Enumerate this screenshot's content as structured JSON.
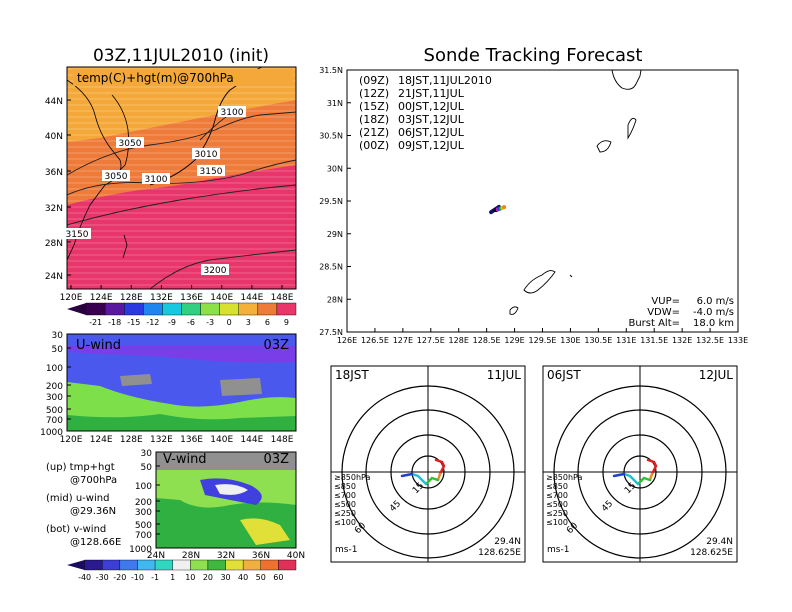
{
  "figure": {
    "left_title": "03Z,11JUL2010 (init)",
    "right_title": "Sonde Tracking Forecast"
  },
  "colors": {
    "map_warm": "#ee8a3a",
    "map_orange": "#f3a33e",
    "map_hot": "#e8356a",
    "wind_blue": "#4a58ee",
    "wind_purple": "#7a3ee8",
    "wind_green": "#7de04a",
    "wind_gray": "#909090",
    "track_red": "#dd2020",
    "track_orange": "#f08a20",
    "track_green": "#30c030",
    "track_cyan": "#20c0d0",
    "track_blue": "#2040d0",
    "track_navy": "#101060"
  },
  "upper_map": {
    "label": "temp(C)+hgt(m)@700hPa",
    "lat_ticks": [
      "44N",
      "40N",
      "36N",
      "32N",
      "28N",
      "24N"
    ],
    "lon_ticks": [
      "120E",
      "124E",
      "128E",
      "132E",
      "136E",
      "140E",
      "144E",
      "148E"
    ],
    "contour_labels": [
      "3100",
      "3050",
      "3010",
      "3050",
      "3100",
      "3150",
      "3150",
      "3200"
    ],
    "colorbar_labels": [
      "-21",
      "-18",
      "-15",
      "-12",
      "-9",
      "-6",
      "-3",
      "0",
      "3",
      "6",
      "9"
    ],
    "colorbar_colors": [
      "#3a0050",
      "#5a18a0",
      "#2a3ae0",
      "#1f86f0",
      "#18c8e0",
      "#30d080",
      "#8ce048",
      "#d8e030",
      "#f5b03a",
      "#ee7b3a",
      "#e8356a"
    ]
  },
  "u_wind": {
    "label": "U-wind",
    "time": "03Z",
    "y_ticks": [
      "30",
      "50",
      "100",
      "200",
      "300",
      "500",
      "700",
      "1000"
    ],
    "x_ticks": [
      "120E",
      "124E",
      "128E",
      "132E",
      "136E",
      "140E",
      "144E",
      "148E"
    ]
  },
  "v_wind": {
    "label": "V-wind",
    "time": "03Z",
    "y_ticks": [
      "30",
      "50",
      "100",
      "200",
      "300",
      "500",
      "700",
      "1000"
    ],
    "x_ticks": [
      "24N",
      "28N",
      "32N",
      "36N",
      "40N"
    ],
    "colorbar_labels": [
      "-40",
      "-30",
      "-20",
      "-10",
      "-1",
      "1",
      "10",
      "20",
      "30",
      "40",
      "50",
      "60"
    ],
    "colorbar_colors": [
      "#2a1a90",
      "#3d3dd8",
      "#3f79ee",
      "#40b8f0",
      "#30d8c0",
      "#f0f0f0",
      "#8ee050",
      "#40b840",
      "#e0e038",
      "#f0b040",
      "#f07030",
      "#e03058"
    ]
  },
  "legend_notes": [
    {
      "title": "(up) tmp+hgt",
      "detail": "@700hPa"
    },
    {
      "title": "(mid) u-wind",
      "detail": "@29.36N"
    },
    {
      "title": "(bot) v-wind",
      "detail": "@128.66E"
    }
  ],
  "track_map": {
    "lat_ticks": [
      "31.5N",
      "31N",
      "30.5N",
      "30N",
      "29.5N",
      "29N",
      "28.5N",
      "28N",
      "27.5N"
    ],
    "lon_ticks": [
      "126E",
      "126.5E",
      "127E",
      "127.5E",
      "128E",
      "128.5E",
      "129E",
      "129.5E",
      "130E",
      "130.5E",
      "131E",
      "131.5E",
      "132E",
      "132.5E",
      "133E"
    ],
    "forecasts": [
      {
        "run": "(09Z)",
        "valid": "18JST,11JUL2010",
        "color": "#000000"
      },
      {
        "run": "(12Z)",
        "valid": "21JST,11JUL",
        "color": "#c020c0"
      },
      {
        "run": "(15Z)",
        "valid": "00JST,12JUL",
        "color": "#2040e0"
      },
      {
        "run": "(18Z)",
        "valid": "03JST,12JUL",
        "color": "#20b020"
      },
      {
        "run": "(21Z)",
        "valid": "06JST,12JUL",
        "color": "#e8c820"
      },
      {
        "run": "(00Z)",
        "valid": "09JST,12JUL",
        "color": "#f08020"
      }
    ],
    "params": [
      {
        "label": "VUP=",
        "value": "6.0 m/s"
      },
      {
        "label": "VDW=",
        "value": "-4.0 m/s"
      },
      {
        "label": "Burst Alt=",
        "value": "18.0 km"
      }
    ]
  },
  "hodographs": [
    {
      "time": "18JST",
      "date": "11JUL",
      "lat": "29.4N",
      "lon": "128.625E",
      "unit": "ms-1",
      "ring_labels": [
        "15",
        "45",
        "60"
      ],
      "levels": [
        {
          "label": "≥850hPa",
          "color": "#dd2020"
        },
        {
          "label": "≤850",
          "color": "#f08a20"
        },
        {
          "label": "≤700",
          "color": "#d8c820"
        },
        {
          "label": "≤500",
          "color": "#30c030"
        },
        {
          "label": "≤250",
          "color": "#20c0d0"
        },
        {
          "label": "≤100",
          "color": "#2040d0"
        }
      ]
    },
    {
      "time": "06JST",
      "date": "12JUL",
      "lat": "29.4N",
      "lon": "128.625E",
      "unit": "ms-1",
      "ring_labels": [
        "15",
        "45",
        "60"
      ],
      "levels": [
        {
          "label": "≥850hPa",
          "color": "#dd2020"
        },
        {
          "label": "≤850",
          "color": "#f08a20"
        },
        {
          "label": "≤700",
          "color": "#d8c820"
        },
        {
          "label": "≤500",
          "color": "#30c030"
        },
        {
          "label": "≤250",
          "color": "#20c0d0"
        },
        {
          "label": "≤100",
          "color": "#2040d0"
        }
      ]
    }
  ],
  "chart_data": [
    {
      "type": "heatmap",
      "title": "temp(C)+hgt(m)@700hPa",
      "xlabel": "",
      "ylabel": "",
      "xlim": [
        120,
        150
      ],
      "ylim": [
        22,
        47
      ],
      "colorbar_levels": [
        -21,
        -18,
        -15,
        -12,
        -9,
        -6,
        -3,
        0,
        3,
        6,
        9
      ],
      "contour_labels": [
        3010,
        3050,
        3100,
        3150,
        3200
      ]
    },
    {
      "type": "heatmap",
      "title": "U-wind",
      "x": "longitude 120E-150E",
      "y": "pressure 1000-30 hPa",
      "at": "29.36N"
    },
    {
      "type": "heatmap",
      "title": "V-wind",
      "x": "latitude 24N-40N",
      "y": "pressure 1000-30 hPa",
      "at": "128.66E",
      "colorbar_levels": [
        -40,
        -30,
        -20,
        -10,
        -1,
        1,
        10,
        20,
        30,
        40,
        50,
        60
      ]
    },
    {
      "type": "scatter",
      "title": "Sonde Tracking Forecast",
      "xlim": [
        126,
        133
      ],
      "ylim": [
        27.5,
        31.5
      ],
      "series": [
        {
          "name": "(09Z) 18JST,11JUL2010",
          "x": [
            128.58,
            128.72
          ],
          "y": [
            29.33,
            29.41
          ]
        }
      ]
    }
  ]
}
